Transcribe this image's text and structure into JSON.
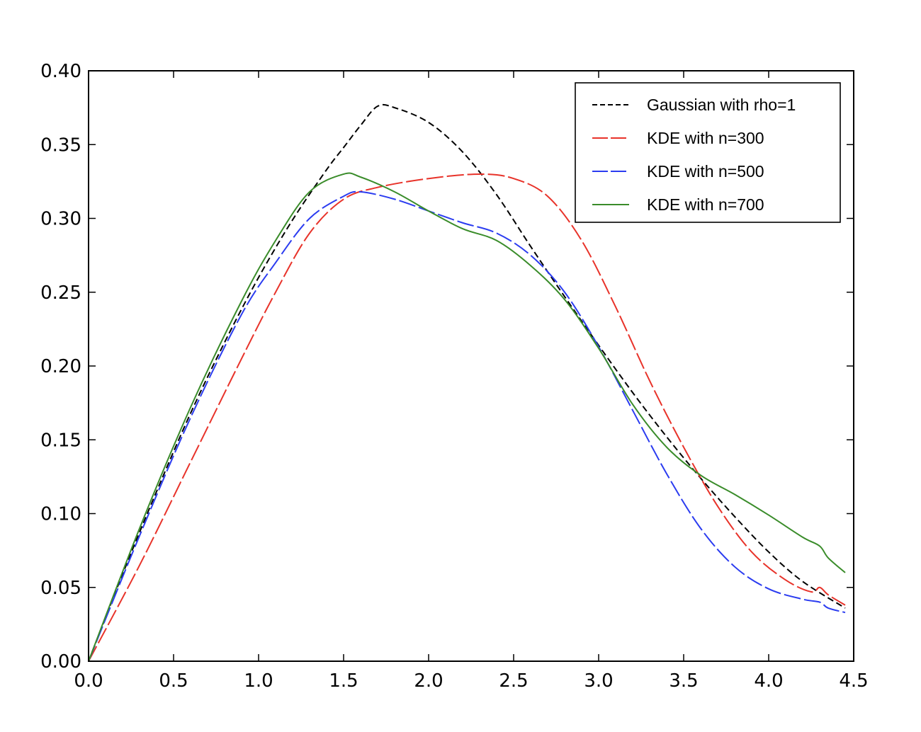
{
  "chart_data": {
    "type": "line",
    "xlim": [
      0.0,
      4.5
    ],
    "ylim": [
      0.0,
      0.4
    ],
    "x_ticks": [
      "0.0",
      "0.5",
      "1.0",
      "1.5",
      "2.0",
      "2.5",
      "3.0",
      "3.5",
      "4.0",
      "4.5"
    ],
    "y_ticks": [
      "0.00",
      "0.05",
      "0.10",
      "0.15",
      "0.20",
      "0.25",
      "0.30",
      "0.35",
      "0.40"
    ],
    "grid": false,
    "legend_position": "top-right",
    "series": [
      {
        "name": "Gaussian with rho=1",
        "color": "#000000",
        "dash": "short",
        "points": [
          [
            0,
            0
          ],
          [
            0.2,
            0.059
          ],
          [
            0.4,
            0.115
          ],
          [
            0.6,
            0.168
          ],
          [
            0.8,
            0.216
          ],
          [
            1.0,
            0.26
          ],
          [
            1.2,
            0.299
          ],
          [
            1.4,
            0.333
          ],
          [
            1.5,
            0.348
          ],
          [
            1.6,
            0.363
          ],
          [
            1.7,
            0.376
          ],
          [
            1.8,
            0.375
          ],
          [
            2.0,
            0.365
          ],
          [
            2.2,
            0.345
          ],
          [
            2.4,
            0.316
          ],
          [
            2.6,
            0.281
          ],
          [
            2.8,
            0.247
          ],
          [
            3.0,
            0.214
          ],
          [
            3.2,
            0.182
          ],
          [
            3.4,
            0.152
          ],
          [
            3.6,
            0.124
          ],
          [
            3.8,
            0.098
          ],
          [
            4.0,
            0.074
          ],
          [
            4.2,
            0.054
          ],
          [
            4.45,
            0.036
          ]
        ]
      },
      {
        "name": "KDE with n=300",
        "color": "#e8332a",
        "dash": "long",
        "points": [
          [
            0,
            0
          ],
          [
            0.3,
            0.065
          ],
          [
            0.6,
            0.135
          ],
          [
            0.9,
            0.205
          ],
          [
            1.1,
            0.25
          ],
          [
            1.3,
            0.29
          ],
          [
            1.5,
            0.313
          ],
          [
            1.7,
            0.321
          ],
          [
            2.0,
            0.327
          ],
          [
            2.3,
            0.33
          ],
          [
            2.5,
            0.327
          ],
          [
            2.7,
            0.315
          ],
          [
            2.9,
            0.285
          ],
          [
            3.1,
            0.24
          ],
          [
            3.3,
            0.19
          ],
          [
            3.5,
            0.145
          ],
          [
            3.7,
            0.105
          ],
          [
            3.9,
            0.074
          ],
          [
            4.1,
            0.055
          ],
          [
            4.25,
            0.047
          ],
          [
            4.3,
            0.05
          ],
          [
            4.35,
            0.045
          ],
          [
            4.45,
            0.038
          ]
        ]
      },
      {
        "name": "KDE with n=500",
        "color": "#2b3cf0",
        "dash": "long",
        "points": [
          [
            0,
            0
          ],
          [
            0.3,
            0.085
          ],
          [
            0.6,
            0.165
          ],
          [
            0.9,
            0.235
          ],
          [
            1.1,
            0.27
          ],
          [
            1.3,
            0.3
          ],
          [
            1.5,
            0.315
          ],
          [
            1.6,
            0.318
          ],
          [
            1.8,
            0.313
          ],
          [
            2.0,
            0.305
          ],
          [
            2.2,
            0.297
          ],
          [
            2.4,
            0.29
          ],
          [
            2.6,
            0.275
          ],
          [
            2.8,
            0.25
          ],
          [
            3.0,
            0.213
          ],
          [
            3.2,
            0.17
          ],
          [
            3.4,
            0.127
          ],
          [
            3.6,
            0.09
          ],
          [
            3.8,
            0.064
          ],
          [
            4.0,
            0.049
          ],
          [
            4.2,
            0.042
          ],
          [
            4.3,
            0.04
          ],
          [
            4.35,
            0.036
          ],
          [
            4.45,
            0.033
          ]
        ]
      },
      {
        "name": "KDE with n=700",
        "color": "#3a8c2a",
        "dash": "solid",
        "points": [
          [
            0,
            0
          ],
          [
            0.3,
            0.09
          ],
          [
            0.6,
            0.172
          ],
          [
            0.9,
            0.244
          ],
          [
            1.1,
            0.285
          ],
          [
            1.3,
            0.318
          ],
          [
            1.5,
            0.33
          ],
          [
            1.6,
            0.328
          ],
          [
            1.8,
            0.318
          ],
          [
            2.0,
            0.305
          ],
          [
            2.2,
            0.293
          ],
          [
            2.4,
            0.285
          ],
          [
            2.6,
            0.268
          ],
          [
            2.8,
            0.245
          ],
          [
            3.0,
            0.212
          ],
          [
            3.2,
            0.174
          ],
          [
            3.4,
            0.145
          ],
          [
            3.6,
            0.126
          ],
          [
            3.8,
            0.113
          ],
          [
            4.0,
            0.099
          ],
          [
            4.2,
            0.084
          ],
          [
            4.3,
            0.078
          ],
          [
            4.35,
            0.07
          ],
          [
            4.45,
            0.06
          ]
        ]
      }
    ]
  }
}
